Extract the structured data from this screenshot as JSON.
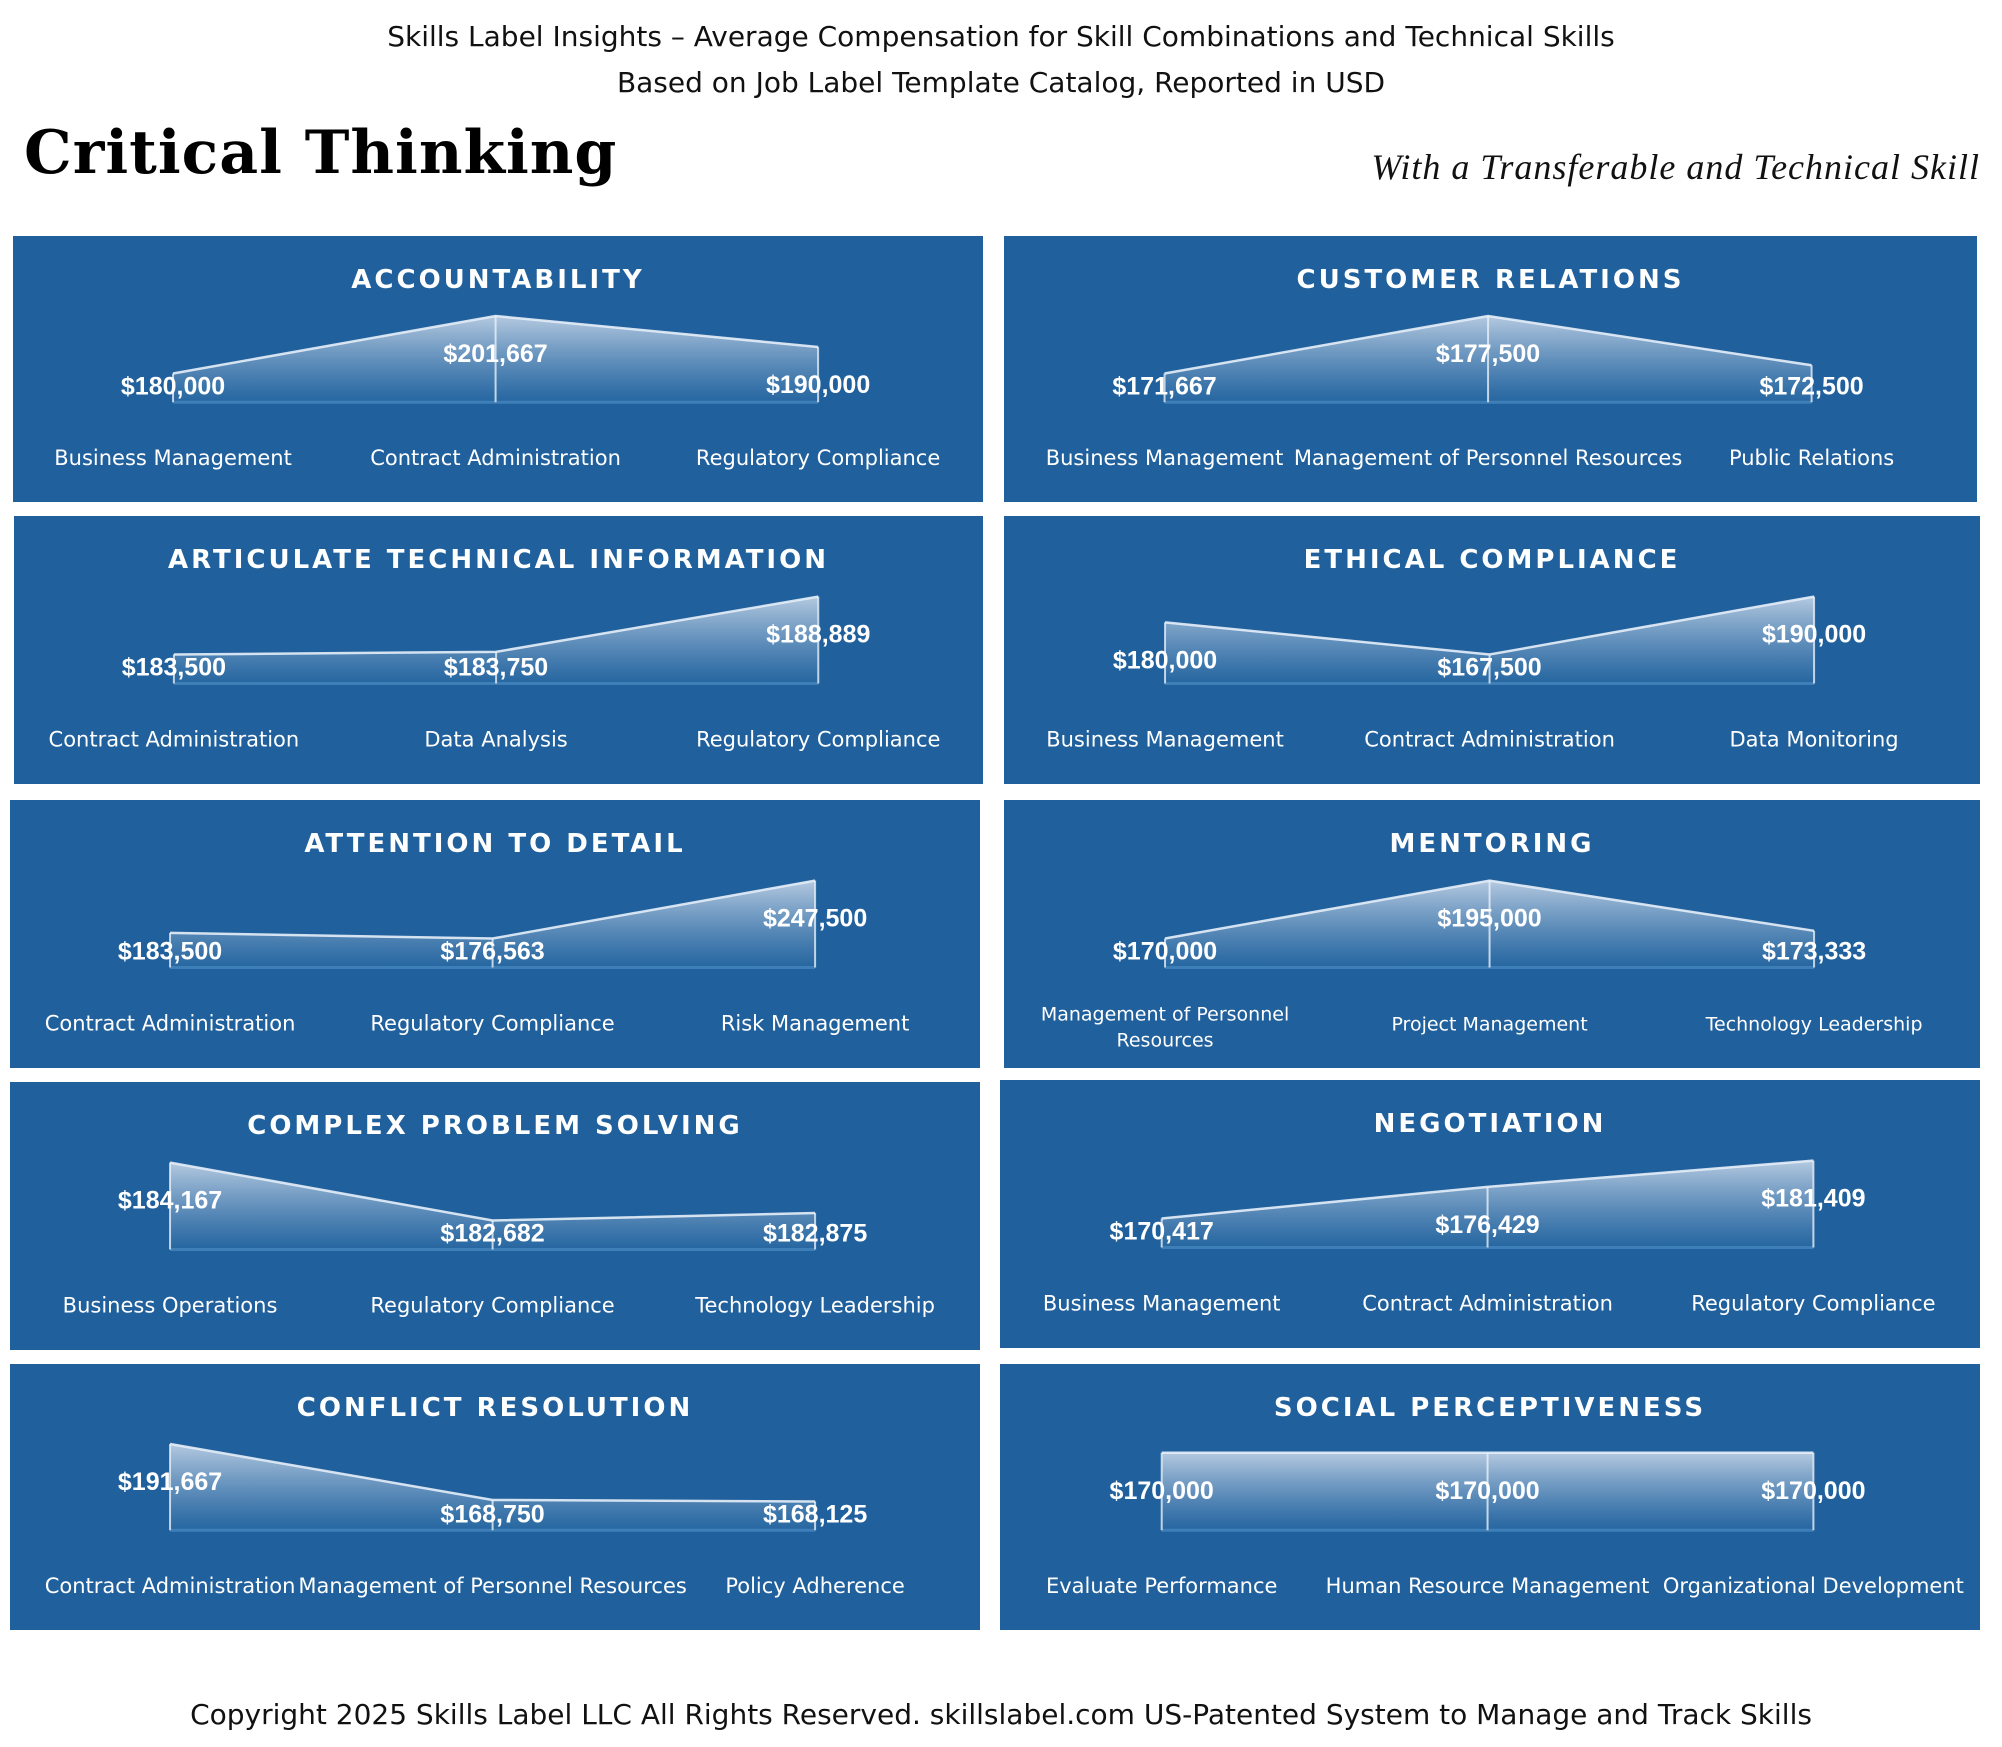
{
  "header": {
    "line1": "Skills Label Insights –  Average Compensation for Skill Combinations and Technical Skills",
    "line2": "Based on Job Label Template Catalog, Reported in USD",
    "title": "Critical Thinking",
    "subtitle": "With a Transferable and Technical Skill"
  },
  "footer": {
    "text": "Copyright 2025 Skills Label LLC All Rights Reserved.   skillslabel.com US-Patented System to Manage and Track Skills"
  },
  "colors": {
    "panel_bg": "#20609c",
    "area_fill_top": "#cfdcec",
    "area_fill_bottom": "#2a6aa4",
    "text": "#ffffff"
  },
  "chart_data": [
    {
      "type": "area",
      "title": "ACCOUNTABILITY",
      "categories": [
        "Business Management",
        "Contract Administration",
        "Regulatory Compliance"
      ],
      "values": [
        180000,
        201667,
        190000
      ],
      "labels": [
        "$180,000",
        "$201,667",
        "$190,000"
      ]
    },
    {
      "type": "area",
      "title": "CUSTOMER RELATIONS",
      "categories": [
        "Business Management",
        "Management of Personnel Resources",
        "Public Relations"
      ],
      "values": [
        171667,
        177500,
        172500
      ],
      "labels": [
        "$171,667",
        "$177,500",
        "$172,500"
      ]
    },
    {
      "type": "area",
      "title": "ARTICULATE TECHNICAL INFORMATION",
      "categories": [
        "Contract Administration",
        "Data Analysis",
        "Regulatory Compliance"
      ],
      "values": [
        183500,
        183750,
        188889
      ],
      "labels": [
        "$183,500",
        "$183,750",
        "$188,889"
      ]
    },
    {
      "type": "area",
      "title": "ETHICAL COMPLIANCE",
      "categories": [
        "Business Management",
        "Contract Administration",
        "Data Monitoring"
      ],
      "values": [
        180000,
        167500,
        190000
      ],
      "labels": [
        "$180,000",
        "$167,500",
        "$190,000"
      ]
    },
    {
      "type": "area",
      "title": "ATTENTION TO DETAIL",
      "categories": [
        "Contract Administration",
        "Regulatory Compliance",
        "Risk Management"
      ],
      "values": [
        183500,
        176563,
        247500
      ],
      "labels": [
        "$183,500",
        "$176,563",
        "$247,500"
      ]
    },
    {
      "type": "area",
      "title": "MENTORING",
      "categories": [
        "Management of Personnel Resources",
        "Project Management",
        "Technology Leadership"
      ],
      "values": [
        170000,
        195000,
        173333
      ],
      "labels": [
        "$170,000",
        "$195,000",
        "$173,333"
      ]
    },
    {
      "type": "area",
      "title": "COMPLEX PROBLEM SOLVING",
      "categories": [
        "Business Operations",
        "Regulatory Compliance",
        "Technology Leadership"
      ],
      "values": [
        184167,
        182682,
        182875
      ],
      "labels": [
        "$184,167",
        "$182,682",
        "$182,875"
      ]
    },
    {
      "type": "area",
      "title": "NEGOTIATION",
      "categories": [
        "Business Management",
        "Contract Administration",
        "Regulatory Compliance"
      ],
      "values": [
        170417,
        176429,
        181409
      ],
      "labels": [
        "$170,417",
        "$176,429",
        "$181,409"
      ]
    },
    {
      "type": "area",
      "title": "CONFLICT RESOLUTION",
      "categories": [
        "Contract Administration",
        "Management of Personnel Resources",
        "Policy Adherence"
      ],
      "values": [
        191667,
        168750,
        168125
      ],
      "labels": [
        "$191,667",
        "$168,750",
        "$168,125"
      ]
    },
    {
      "type": "area",
      "title": "SOCIAL PERCEPTIVENESS",
      "categories": [
        "Evaluate Performance",
        "Human Resource Management",
        "Organizational Development"
      ],
      "values": [
        170000,
        170000,
        170000
      ],
      "labels": [
        "$170,000",
        "$170,000",
        "$170,000"
      ]
    }
  ]
}
